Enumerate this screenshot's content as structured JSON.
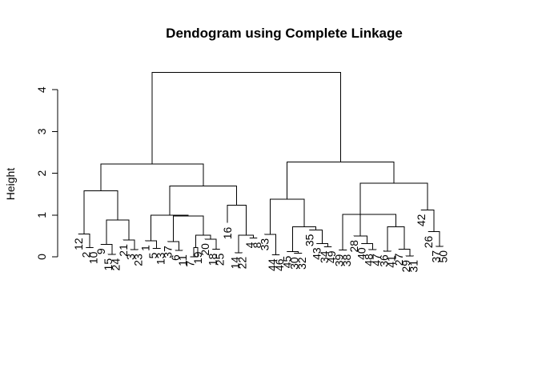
{
  "chart_data": {
    "type": "dendrogram",
    "title": "Dendogram using Complete Linkage",
    "xlabel": "",
    "ylabel": "Height",
    "ylim": [
      0,
      4.5
    ],
    "yticks": [
      0,
      1,
      2,
      3,
      4
    ],
    "axis_color": "#000000",
    "line_color": "#000000",
    "leaves": [
      "12",
      "2",
      "10",
      "9",
      "15",
      "24",
      "21",
      "3",
      "23",
      "1",
      "5",
      "13",
      "37",
      "6",
      "11",
      "7",
      "19",
      "20",
      "18",
      "25",
      "16",
      "14",
      "22",
      "4",
      "8",
      "33",
      "44",
      "46",
      "45",
      "30",
      "32",
      "35",
      "43",
      "34",
      "49",
      "39",
      "38",
      "28",
      "40",
      "48",
      "47",
      "36",
      "41",
      "27",
      "29",
      "31",
      "42",
      "26",
      "37",
      "50"
    ],
    "leaf_heights": [
      0.55,
      0.22,
      0.22,
      0.3,
      0.06,
      0.06,
      0.4,
      0.17,
      0.17,
      0.38,
      0.2,
      0.2,
      0.36,
      0.15,
      0.15,
      0.0,
      0.22,
      0.42,
      0.18,
      0.18,
      0.81,
      0.1,
      0.1,
      0.45,
      0.45,
      0.54,
      0.05,
      0.05,
      0.12,
      0.09,
      0.09,
      0.64,
      0.32,
      0.24,
      0.24,
      0.16,
      0.16,
      0.5,
      0.32,
      0.17,
      0.17,
      0.15,
      0.13,
      0.18,
      0.02,
      0.02,
      1.12,
      0.6,
      0.25,
      0.25
    ],
    "merges": [
      {
        "height": 0.22,
        "left": "leaf:1",
        "right": "leaf:2"
      },
      {
        "height": 0.55,
        "left": "leaf:0",
        "right": "node:0"
      },
      {
        "height": 0.06,
        "left": "leaf:4",
        "right": "leaf:5"
      },
      {
        "height": 0.3,
        "left": "leaf:3",
        "right": "node:2"
      },
      {
        "height": 0.17,
        "left": "leaf:7",
        "right": "leaf:8"
      },
      {
        "height": 0.4,
        "left": "leaf:6",
        "right": "node:4"
      },
      {
        "height": 0.88,
        "left": "node:3",
        "right": "node:5"
      },
      {
        "height": 1.58,
        "left": "node:1",
        "right": "node:6"
      },
      {
        "height": 0.2,
        "left": "leaf:10",
        "right": "leaf:11"
      },
      {
        "height": 0.38,
        "left": "leaf:9",
        "right": "node:8"
      },
      {
        "height": 0.15,
        "left": "leaf:13",
        "right": "leaf:14"
      },
      {
        "height": 0.36,
        "left": "leaf:12",
        "right": "node:10"
      },
      {
        "height": 0.0,
        "left": "leaf:15",
        "right": "leaf:16"
      },
      {
        "height": 0.22,
        "left": "node:12",
        "right": "leaf:16"
      },
      {
        "height": 0.18,
        "left": "leaf:18",
        "right": "leaf:19"
      },
      {
        "height": 0.42,
        "left": "leaf:17",
        "right": "node:14"
      },
      {
        "height": 0.52,
        "left": "node:13",
        "right": "node:15"
      },
      {
        "height": 0.98,
        "left": "node:11",
        "right": "node:16"
      },
      {
        "height": 1.0,
        "left": "node:9",
        "right": "node:17"
      },
      {
        "height": 0.1,
        "left": "leaf:21",
        "right": "leaf:22"
      },
      {
        "height": 0.45,
        "left": "leaf:23",
        "right": "leaf:24"
      },
      {
        "height": 0.52,
        "left": "node:19",
        "right": "node:20"
      },
      {
        "height": 1.24,
        "left": "leaf:20",
        "right": "node:21"
      },
      {
        "height": 1.7,
        "left": "node:18",
        "right": "node:22"
      },
      {
        "height": 2.22,
        "left": "node:7",
        "right": "node:23"
      },
      {
        "height": 0.05,
        "left": "leaf:26",
        "right": "leaf:27"
      },
      {
        "height": 0.54,
        "left": "leaf:25",
        "right": "node:25"
      },
      {
        "height": 0.09,
        "left": "leaf:29",
        "right": "leaf:30"
      },
      {
        "height": 0.12,
        "left": "leaf:28",
        "right": "node:27"
      },
      {
        "height": 0.24,
        "left": "leaf:33",
        "right": "leaf:34"
      },
      {
        "height": 0.32,
        "left": "leaf:32",
        "right": "node:29"
      },
      {
        "height": 0.64,
        "left": "leaf:31",
        "right": "node:30"
      },
      {
        "height": 0.72,
        "left": "node:28",
        "right": "node:31"
      },
      {
        "height": 1.38,
        "left": "node:26",
        "right": "node:32"
      },
      {
        "height": 0.16,
        "left": "leaf:35",
        "right": "leaf:36"
      },
      {
        "height": 0.17,
        "left": "leaf:39",
        "right": "leaf:40"
      },
      {
        "height": 0.32,
        "left": "leaf:38",
        "right": "node:35"
      },
      {
        "height": 0.5,
        "left": "leaf:37",
        "right": "node:36"
      },
      {
        "height": 0.13,
        "left": "leaf:41",
        "right": "leaf:42"
      },
      {
        "height": 0.02,
        "left": "leaf:44",
        "right": "leaf:45"
      },
      {
        "height": 0.18,
        "left": "leaf:43",
        "right": "node:39"
      },
      {
        "height": 0.72,
        "left": "node:38",
        "right": "node:40"
      },
      {
        "height": 1.02,
        "left": "node:37",
        "right": "node:41"
      },
      {
        "height": 1.02,
        "left": "node:34",
        "right": "node:42"
      },
      {
        "height": 0.25,
        "left": "leaf:48",
        "right": "leaf:49"
      },
      {
        "height": 0.6,
        "left": "leaf:47",
        "right": "node:44"
      },
      {
        "height": 1.12,
        "left": "leaf:46",
        "right": "node:45"
      },
      {
        "height": 1.76,
        "left": "node:43",
        "right": "node:46"
      },
      {
        "height": 2.27,
        "left": "node:33",
        "right": "node:47"
      },
      {
        "height": 4.42,
        "left": "node:24",
        "right": "node:48"
      }
    ]
  }
}
